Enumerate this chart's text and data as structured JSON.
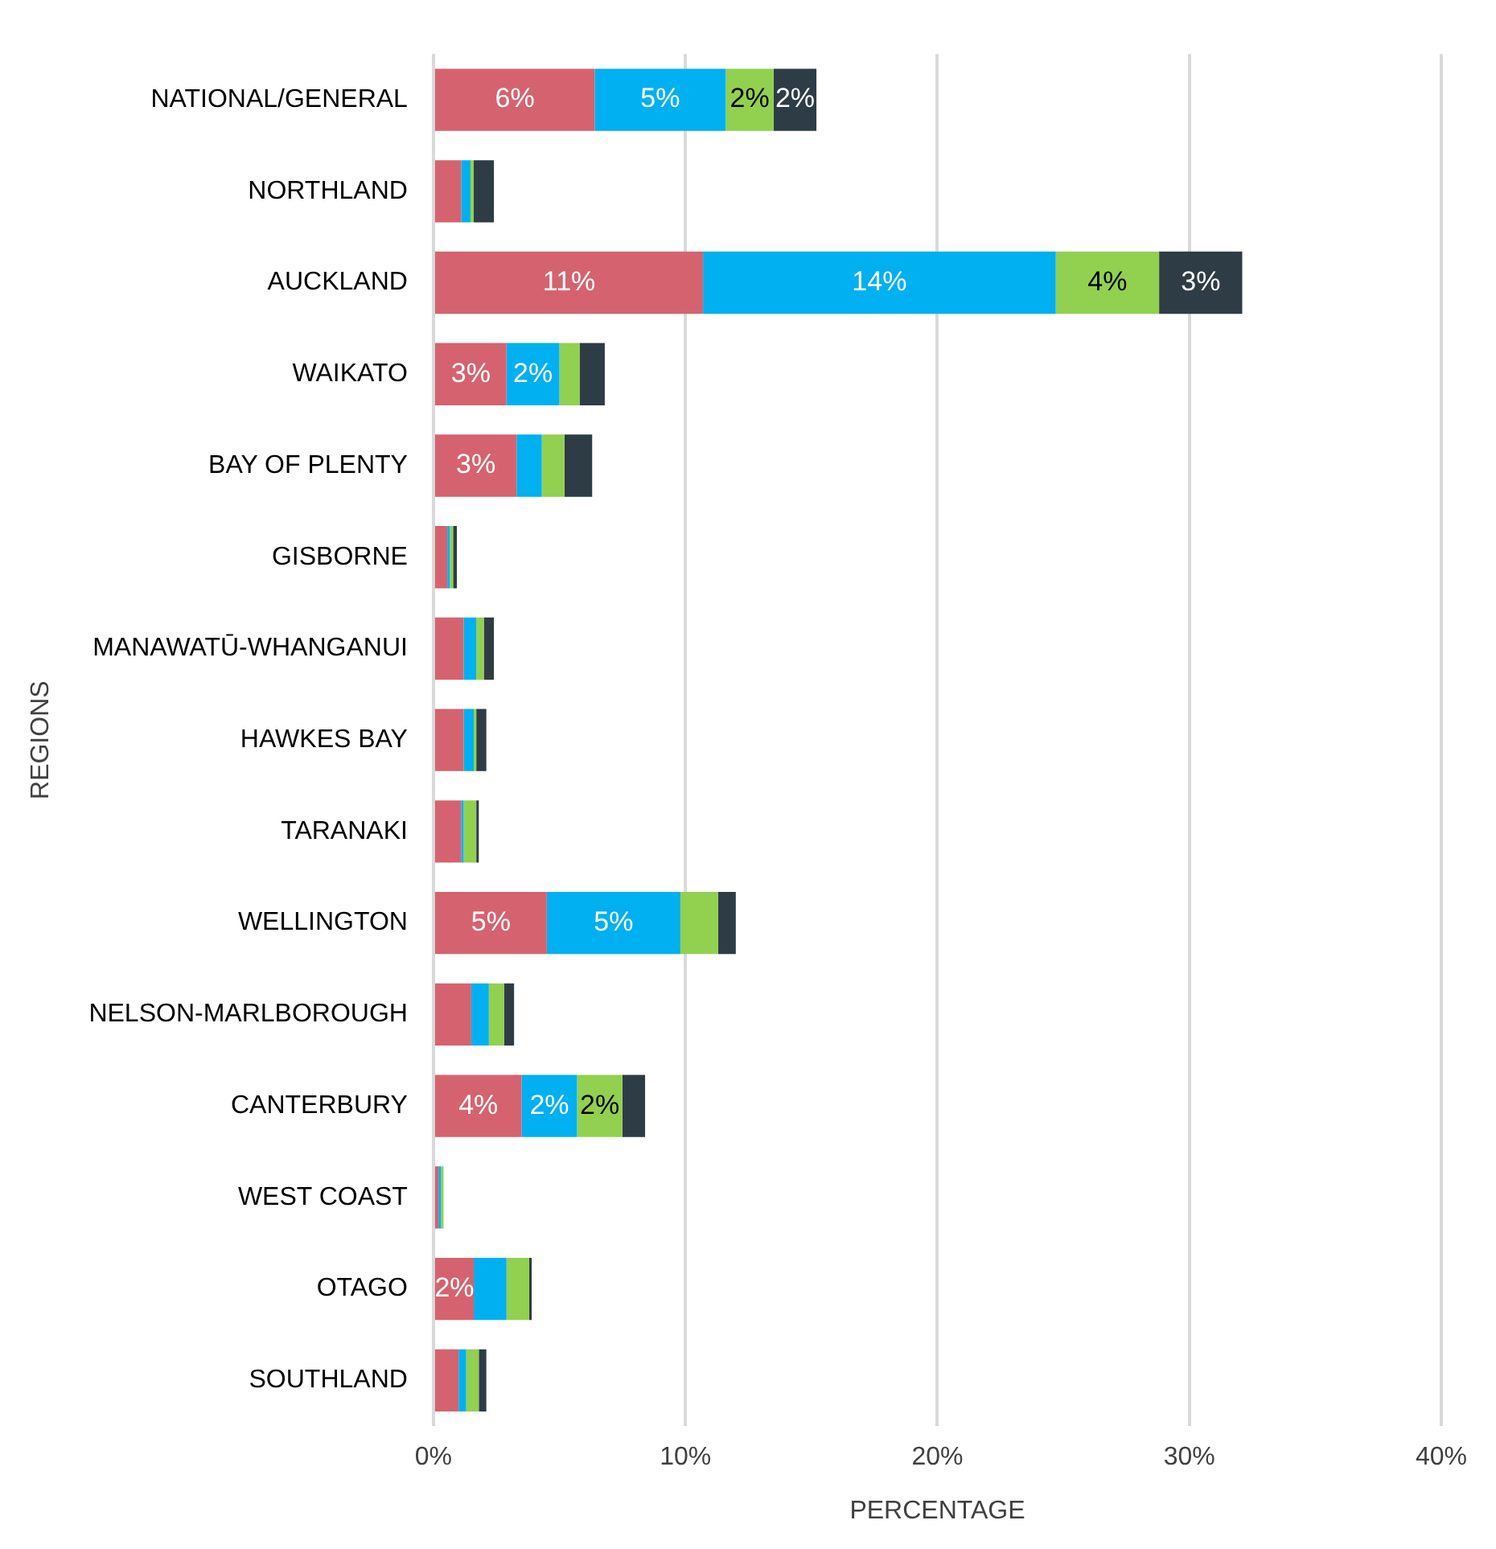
{
  "chart_data": {
    "type": "bar",
    "orientation": "horizontal",
    "stacked": true,
    "xlabel": "PERCENTAGE",
    "ylabel": "REGIONS",
    "categories": [
      "NATIONAL/GENERAL",
      "NORTHLAND",
      "AUCKLAND",
      "WAIKATO",
      "BAY OF PLENTY",
      "GISBORNE",
      "MANAWATŪ-WHANGANUI",
      "HAWKES BAY",
      "TARANAKI",
      "WELLINGTON",
      "NELSON-MARLBOROUGH",
      "CANTERBURY",
      "WEST COAST",
      "OTAGO",
      "SOUTHLAND"
    ],
    "series": [
      {
        "color": "#d4636f",
        "values": [
          6.4,
          1.1,
          10.7,
          2.9,
          3.3,
          0.55,
          1.2,
          1.2,
          1.1,
          4.5,
          1.5,
          3.5,
          0.2,
          1.6,
          1.0
        ],
        "value_labels": [
          "6%",
          null,
          "11%",
          "3%",
          "3%",
          null,
          null,
          null,
          null,
          "5%",
          null,
          "4%",
          null,
          "2%",
          null
        ]
      },
      {
        "color": "#00b0f0",
        "values": [
          5.2,
          0.37,
          14.0,
          2.1,
          1.0,
          0.1,
          0.5,
          0.4,
          0.1,
          5.3,
          0.7,
          2.2,
          0.1,
          1.3,
          0.3
        ],
        "value_labels": [
          "5%",
          null,
          "14%",
          "2%",
          null,
          null,
          null,
          null,
          null,
          "5%",
          null,
          "2%",
          null,
          null,
          null
        ]
      },
      {
        "color": "#92d050",
        "values": [
          1.9,
          0.13,
          4.1,
          0.8,
          0.9,
          0.13,
          0.3,
          0.1,
          0.5,
          1.5,
          0.6,
          1.8,
          0.1,
          0.9,
          0.5
        ],
        "value_labels": [
          "2%",
          null,
          "4%",
          null,
          null,
          null,
          null,
          null,
          null,
          null,
          null,
          "2%",
          null,
          null,
          null
        ]
      },
      {
        "color": "#2e3c46",
        "values": [
          1.7,
          0.8,
          3.3,
          1.0,
          1.1,
          0.15,
          0.4,
          0.4,
          0.1,
          0.7,
          0.4,
          0.9,
          0,
          0.1,
          0.3
        ],
        "value_labels": [
          "2%",
          null,
          "3%",
          null,
          null,
          null,
          null,
          null,
          null,
          null,
          null,
          null,
          null,
          null,
          null
        ]
      }
    ],
    "xlim": [
      0,
      40
    ],
    "xticks": [
      {
        "value": 0,
        "label": "0%"
      },
      {
        "value": 10,
        "label": "10%"
      },
      {
        "value": 20,
        "label": "20%"
      },
      {
        "value": 30,
        "label": "30%"
      },
      {
        "value": 40,
        "label": "40%"
      }
    ],
    "grid": "x",
    "legend": false
  }
}
